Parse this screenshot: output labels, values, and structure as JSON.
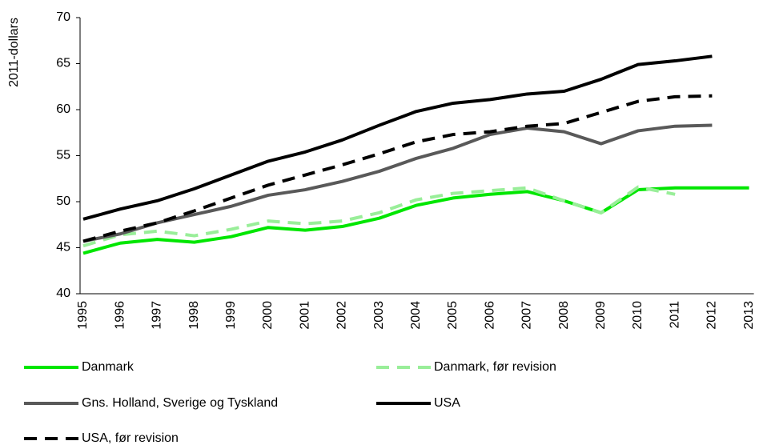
{
  "chart_data": {
    "type": "line",
    "ylabel": "2011-dollars",
    "categories": [
      "1995",
      "1996",
      "1997",
      "1998",
      "1999",
      "2000",
      "2001",
      "2002",
      "2003",
      "2004",
      "2005",
      "2006",
      "2007",
      "2008",
      "2009",
      "2010",
      "2011",
      "2012",
      "2013"
    ],
    "ylim": [
      40,
      70
    ],
    "yticks": [
      40,
      45,
      50,
      55,
      60,
      65,
      70
    ],
    "series": [
      {
        "name": "Danmark",
        "color": "#00e600",
        "dashed": false,
        "values": [
          44.4,
          45.5,
          45.9,
          45.6,
          46.2,
          47.2,
          46.9,
          47.3,
          48.2,
          49.6,
          50.4,
          50.8,
          51.1,
          50.1,
          48.8,
          51.3,
          51.5,
          51.5,
          51.5
        ]
      },
      {
        "name": "Danmark, før revision",
        "color": "#99ee99",
        "dashed": true,
        "values": [
          45.2,
          46.4,
          46.8,
          46.3,
          47.0,
          47.9,
          47.6,
          47.9,
          48.8,
          50.2,
          50.9,
          51.2,
          51.5,
          50.1,
          48.8,
          51.6,
          50.8,
          null,
          null
        ]
      },
      {
        "name": "Gns. Holland, Sverige og Tyskland",
        "color": "#595959",
        "dashed": false,
        "values": [
          45.7,
          46.5,
          47.7,
          48.6,
          49.5,
          50.7,
          51.3,
          52.2,
          53.3,
          54.7,
          55.8,
          57.3,
          58.0,
          57.6,
          56.3,
          57.7,
          58.2,
          58.3,
          null
        ]
      },
      {
        "name": "USA",
        "color": "#000000",
        "dashed": false,
        "values": [
          48.1,
          49.2,
          50.1,
          51.4,
          52.9,
          54.4,
          55.4,
          56.7,
          58.3,
          59.8,
          60.7,
          61.1,
          61.7,
          62.0,
          63.3,
          64.9,
          65.3,
          65.8,
          null
        ]
      },
      {
        "name": "USA, før revision",
        "color": "#000000",
        "dashed": true,
        "values": [
          45.7,
          46.8,
          47.7,
          49.0,
          50.4,
          51.8,
          52.9,
          54.0,
          55.2,
          56.5,
          57.3,
          57.6,
          58.2,
          58.5,
          59.7,
          60.9,
          61.4,
          61.5,
          null
        ]
      }
    ]
  }
}
